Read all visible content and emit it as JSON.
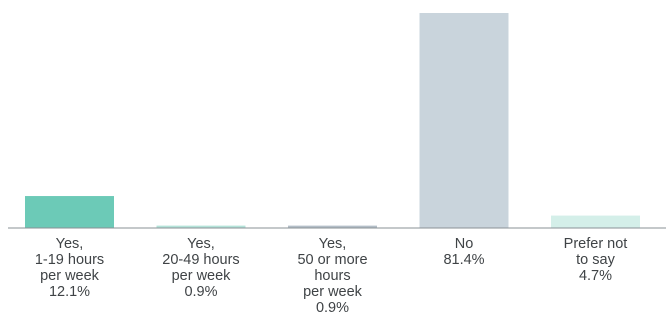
{
  "chart_data": {
    "type": "bar",
    "title": "",
    "xlabel": "",
    "ylabel": "",
    "ylim": [
      0,
      81.4
    ],
    "grid": false,
    "legend": "none",
    "categories": [
      [
        "Yes,",
        "1-19 hours",
        "per week"
      ],
      [
        "Yes,",
        "20-49 hours",
        "per week"
      ],
      [
        "Yes,",
        "50 or more",
        "hours",
        "per week"
      ],
      [
        "No"
      ],
      [
        "Prefer not",
        "to say"
      ]
    ],
    "values": [
      12.1,
      0.9,
      0.9,
      81.4,
      4.7
    ],
    "value_labels": [
      "12.1%",
      "0.9%",
      "0.9%",
      "81.4%",
      "4.7%"
    ],
    "colors": [
      "#6ccab7",
      "#b4e3d9",
      "#b3bec7",
      "#c9d4dc",
      "#d4efe9"
    ],
    "axis_color": "#8a9096"
  }
}
